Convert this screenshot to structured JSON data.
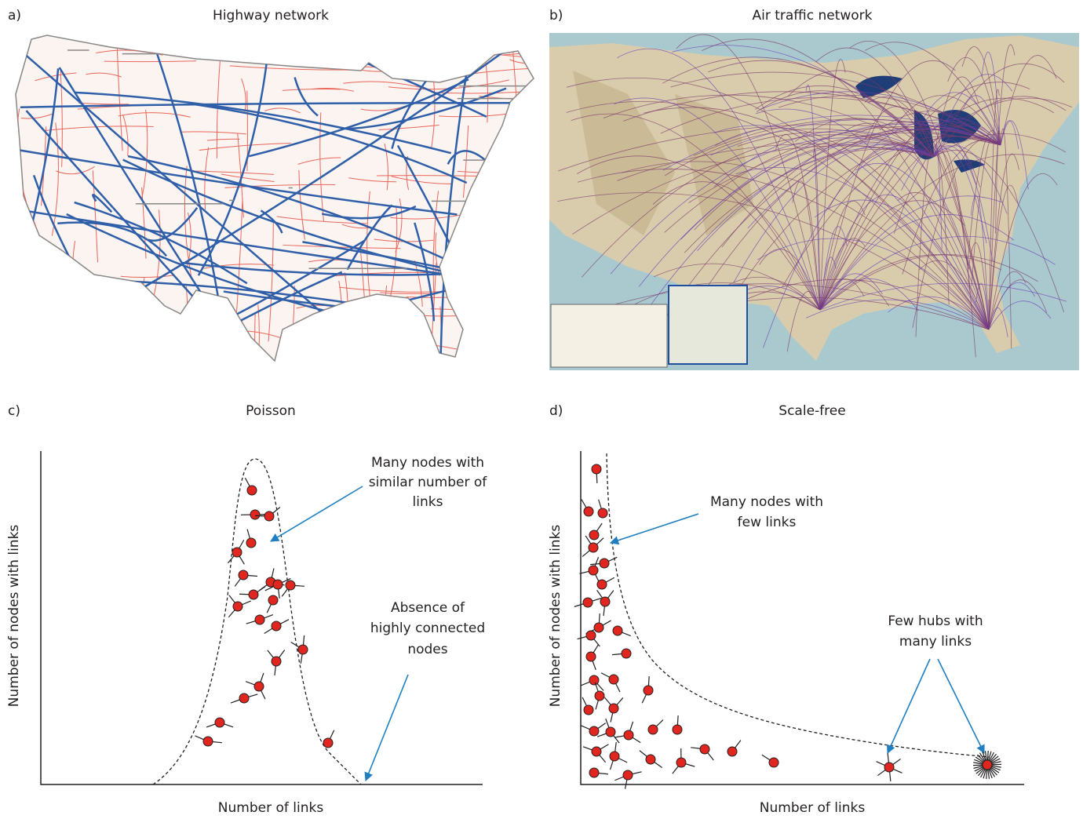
{
  "panels": [
    {
      "label": "a)",
      "title": "Highway network"
    },
    {
      "label": "b)",
      "title": "Air traffic network"
    },
    {
      "label": "c)",
      "title": "Poisson",
      "x_label": "Number of links",
      "y_label": "Number of nodes with links",
      "annotations": [
        [
          "Many nodes with",
          "similar number of",
          "links"
        ],
        [
          "Absence of",
          "highly connected",
          "nodes"
        ]
      ]
    },
    {
      "label": "d)",
      "title": "Scale-free",
      "x_label": "Number of links",
      "y_label": "Number of nodes with links",
      "annotations": [
        [
          "Many nodes with",
          "few links"
        ],
        [
          "Few hubs with",
          "many links"
        ]
      ]
    }
  ]
}
